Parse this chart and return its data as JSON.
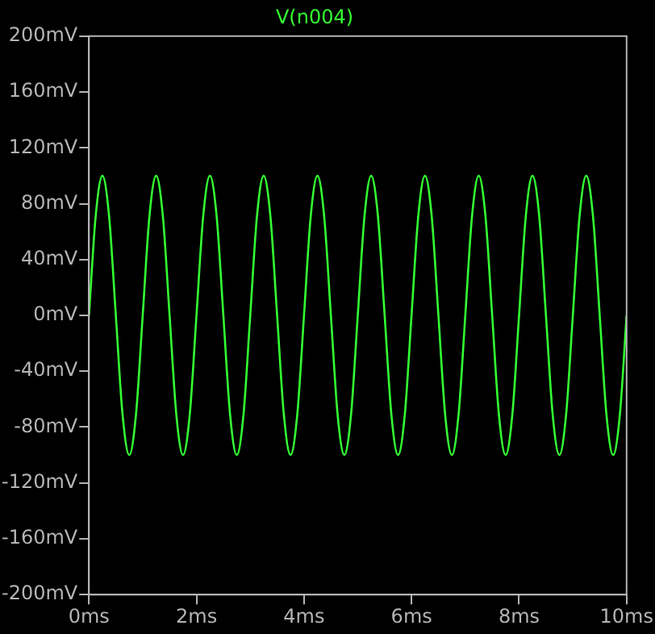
{
  "chart_data": {
    "type": "line",
    "title": "V(n004)",
    "x": [
      0,
      0.125,
      0.25,
      0.375,
      0.5,
      0.625,
      0.75,
      0.875,
      1,
      1.125,
      1.25,
      1.375,
      1.5,
      1.625,
      1.75,
      1.875,
      2,
      2.125,
      2.25,
      2.375,
      2.5,
      2.625,
      2.75,
      2.875,
      3,
      3.125,
      3.25,
      3.375,
      3.5,
      3.625,
      3.75,
      3.875,
      4,
      4.125,
      4.25,
      4.375,
      4.5,
      4.625,
      4.75,
      4.875,
      5,
      5.125,
      5.25,
      5.375,
      5.5,
      5.625,
      5.75,
      5.875,
      6,
      6.125,
      6.25,
      6.375,
      6.5,
      6.625,
      6.75,
      6.875,
      7,
      7.125,
      7.25,
      7.375,
      7.5,
      7.625,
      7.75,
      7.875,
      8,
      8.125,
      8.25,
      8.375,
      8.5,
      8.625,
      8.75,
      8.875,
      9,
      9.125,
      9.25,
      9.375,
      9.5,
      9.625,
      9.75,
      9.875,
      10
    ],
    "series": [
      {
        "color": "#33ff33",
        "values": [
          0,
          71,
          100,
          71,
          0,
          -71,
          -100,
          -71,
          0,
          71,
          100,
          71,
          0,
          -71,
          -100,
          -71,
          0,
          71,
          100,
          71,
          0,
          -71,
          -100,
          -71,
          0,
          71,
          100,
          71,
          0,
          -71,
          -100,
          -71,
          0,
          71,
          100,
          71,
          0,
          -71,
          -100,
          -71,
          0,
          71,
          100,
          71,
          0,
          -71,
          -100,
          -71,
          0,
          71,
          100,
          71,
          0,
          -71,
          -100,
          -71,
          0,
          71,
          100,
          71,
          0,
          -71,
          -100,
          -71,
          0,
          71,
          100,
          71,
          0,
          -71,
          -100,
          -71,
          0,
          71,
          100,
          71,
          0,
          -71,
          -100,
          -71,
          0
        ]
      }
    ],
    "xlim": [
      0,
      10
    ],
    "xticks": [
      {
        "value": 0,
        "label": "0ms"
      },
      {
        "value": 2,
        "label": "2ms"
      },
      {
        "value": 4,
        "label": "4ms"
      },
      {
        "value": 6,
        "label": "6ms"
      },
      {
        "value": 8,
        "label": "8ms"
      },
      {
        "value": 10,
        "label": "10ms"
      }
    ],
    "ylim": [
      -200,
      200
    ],
    "yticks": [
      {
        "value": -200,
        "label": "-200mV"
      },
      {
        "value": -160,
        "label": "-160mV"
      },
      {
        "value": -120,
        "label": "-120mV"
      },
      {
        "value": -80,
        "label": "-80mV"
      },
      {
        "value": -40,
        "label": "-40mV"
      },
      {
        "value": 0,
        "label": "0mV"
      },
      {
        "value": 40,
        "label": "40mV"
      },
      {
        "value": 80,
        "label": "80mV"
      },
      {
        "value": 120,
        "label": "120mV"
      },
      {
        "value": 160,
        "label": "160mV"
      },
      {
        "value": 200,
        "label": "200mV"
      }
    ],
    "grid": false,
    "legend": false,
    "marker": "none",
    "line_style": "solid"
  }
}
